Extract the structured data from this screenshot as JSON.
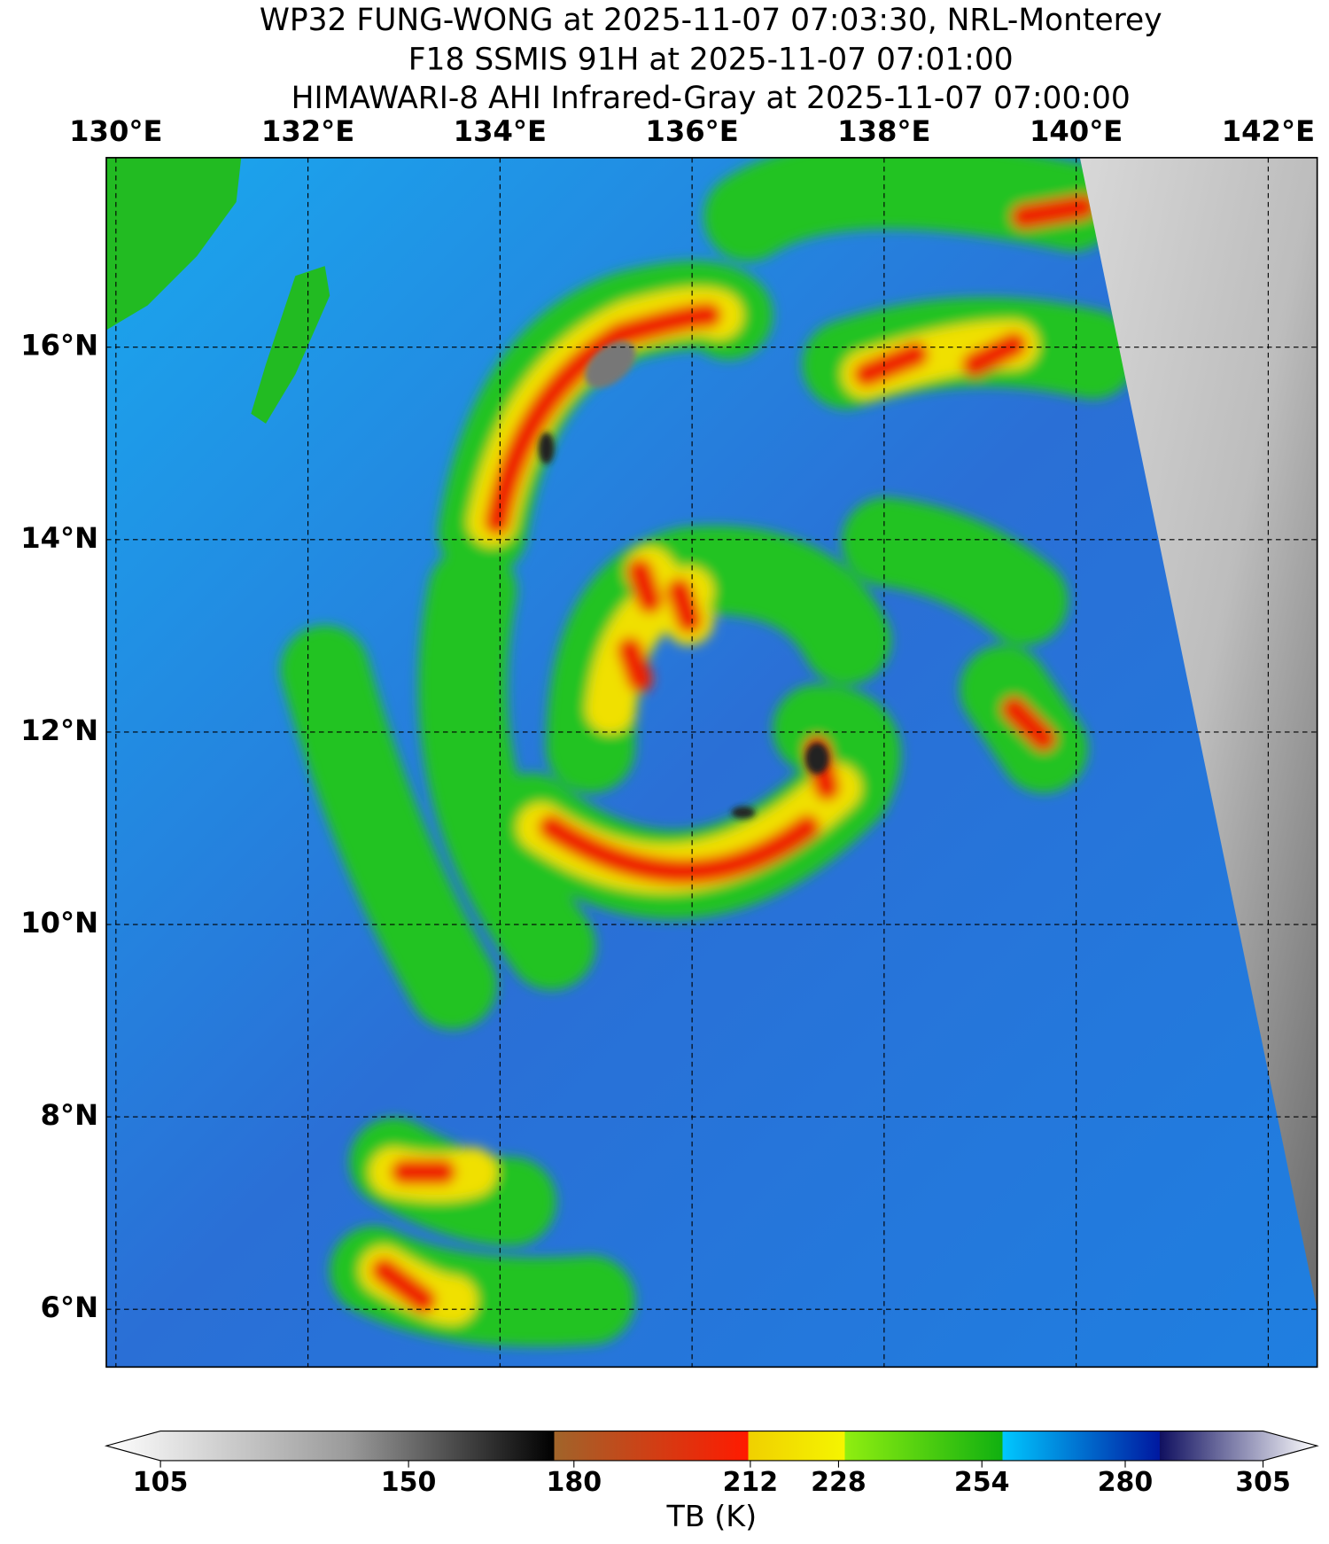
{
  "title_lines": [
    "WP32 FUNG-WONG at 2025-11-07 07:03:30, NRL-Monterey",
    "F18 SSMIS 91H at 2025-11-07 07:01:00",
    "HIMAWARI-8 AHI Infrared-Gray at 2025-11-07 07:00:00"
  ],
  "map": {
    "lonlim": [
      129.9,
      142.51
    ],
    "latlim": [
      5.4,
      17.97
    ],
    "lonticks": [
      {
        "value": 130,
        "label": "130°E"
      },
      {
        "value": 132,
        "label": "132°E"
      },
      {
        "value": 134,
        "label": "134°E"
      },
      {
        "value": 136,
        "label": "136°E"
      },
      {
        "value": 138,
        "label": "138°E"
      },
      {
        "value": 140,
        "label": "140°E"
      },
      {
        "value": 142,
        "label": "142°E"
      }
    ],
    "latticks": [
      {
        "value": 6,
        "label": "6°N"
      },
      {
        "value": 8,
        "label": "8°N"
      },
      {
        "value": 10,
        "label": "10°N"
      },
      {
        "value": 12,
        "label": "12°N"
      },
      {
        "value": 14,
        "label": "14°N"
      },
      {
        "value": 16,
        "label": "16°N"
      }
    ],
    "grid": true
  },
  "colorbar": {
    "label": "TB (K)",
    "lim": [
      105,
      305
    ],
    "ticks": [
      105,
      150,
      180,
      212,
      228,
      254,
      280,
      305
    ]
  }
}
